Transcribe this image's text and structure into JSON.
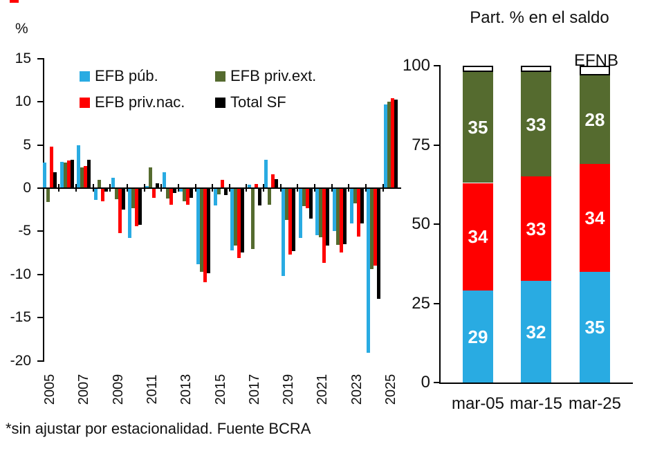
{
  "footnote": "*sin ajustar por estacionalidad. Fuente BCRA",
  "accent_colors": {
    "efb_pub_blue": "#29ABE2",
    "efb_priv_nac_red": "#FF0000",
    "efb_priv_ext_green": "#556B2F",
    "total_sf_black": "#000000",
    "efnb_white": "#FFFFFF"
  },
  "chart_data": [
    {
      "type": "bar",
      "panel": "left",
      "title": "",
      "ylabel": "%",
      "ylim": [
        -20,
        15
      ],
      "yticks": [
        15,
        10,
        5,
        0,
        -5,
        -10,
        -15,
        -20
      ],
      "xtick_labels": [
        "2005",
        "2007",
        "2009",
        "2011",
        "2013",
        "2015",
        "2017",
        "2019",
        "2021",
        "2023",
        "2025"
      ],
      "categories": [
        2005,
        2006,
        2007,
        2008,
        2009,
        2010,
        2011,
        2012,
        2013,
        2014,
        2015,
        2016,
        2017,
        2018,
        2019,
        2020,
        2021,
        2022,
        2023,
        2024,
        2025
      ],
      "series": [
        {
          "name": "EFB púb.",
          "color": "#29ABE2",
          "values": [
            2.9,
            3.0,
            4.9,
            -1.3,
            1.1,
            -5.7,
            0.2,
            1.8,
            -0.3,
            -8.7,
            -1.9,
            -7.1,
            0.3,
            3.2,
            -10.1,
            -5.7,
            -5.4,
            -4.9,
            -4.0,
            -19.0,
            9.6
          ]
        },
        {
          "name": "EFB priv.ext.",
          "color": "#556B2F",
          "values": [
            -1.5,
            2.9,
            2.3,
            0.9,
            -1.2,
            -2.2,
            2.3,
            -1.1,
            -1.4,
            -9.6,
            -0.6,
            -6.6,
            -7.0,
            -1.8,
            -3.6,
            -2.0,
            -5.6,
            -6.5,
            -1.7,
            -9.3,
            9.9
          ]
        },
        {
          "name": "EFB priv.nac.",
          "color": "#FF0000",
          "values": [
            4.7,
            3.1,
            2.5,
            -1.4,
            -5.1,
            -4.3,
            -1.0,
            -1.8,
            -1.8,
            -10.8,
            0.9,
            -8.0,
            0.4,
            1.5,
            -7.6,
            -2.2,
            -8.6,
            -7.4,
            -5.5,
            -8.9,
            10.3
          ]
        },
        {
          "name": "Total SF",
          "color": "#000000",
          "values": [
            1.8,
            3.2,
            3.2,
            -0.3,
            -2.4,
            -4.2,
            0.5,
            -0.5,
            -1.0,
            -9.8,
            -0.7,
            -7.4,
            -1.9,
            1.0,
            -7.2,
            -3.4,
            -6.6,
            -6.4,
            -4.0,
            -12.7,
            10.2
          ]
        }
      ],
      "legend": [
        {
          "label": "EFB púb.",
          "color": "#29ABE2"
        },
        {
          "label": "EFB priv.ext.",
          "color": "#556B2F"
        },
        {
          "label": "EFB priv.nac.",
          "color": "#FF0000"
        },
        {
          "label": "Total SF",
          "color": "#000000"
        }
      ],
      "legend_position": "top-inside",
      "grid": false
    },
    {
      "type": "stacked-bar",
      "panel": "right",
      "title": "Part. % en el saldo",
      "categories": [
        "mar-05",
        "mar-15",
        "mar-25"
      ],
      "series": [
        {
          "name": "EFB púb.",
          "color": "#29ABE2",
          "values": [
            29,
            32,
            35
          ],
          "labels": [
            "29",
            "32",
            "35"
          ]
        },
        {
          "name": "EFB priv.nac.",
          "color": "#FF0000",
          "values": [
            34,
            33,
            34
          ],
          "labels": [
            "34",
            "33",
            "34"
          ]
        },
        {
          "name": "EFB priv.ext.",
          "color": "#556B2F",
          "values": [
            35,
            33,
            28
          ],
          "labels": [
            "35",
            "33",
            "28"
          ]
        },
        {
          "name": "EFNB",
          "color": "#FFFFFF",
          "values": [
            2,
            2,
            3
          ],
          "labels": [
            "",
            "",
            ""
          ]
        }
      ],
      "annotation": "EFNB",
      "ylim": [
        0,
        100
      ],
      "yticks": [
        100,
        75,
        50,
        25,
        0
      ],
      "grid": false
    }
  ]
}
